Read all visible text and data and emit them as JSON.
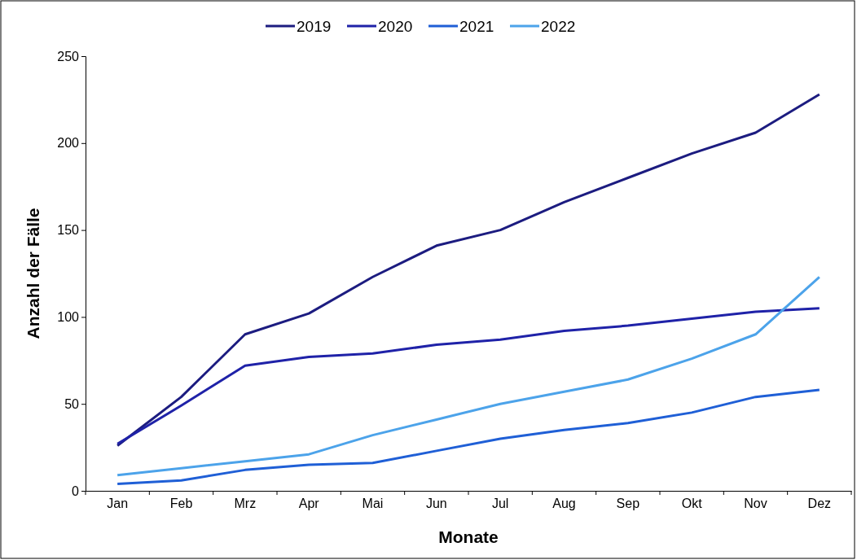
{
  "chart_data": {
    "type": "line",
    "xlabel": "Monate",
    "ylabel": "Anzahl der Fälle",
    "categories": [
      "Jan",
      "Feb",
      "Mrz",
      "Apr",
      "Mai",
      "Jun",
      "Jul",
      "Aug",
      "Sep",
      "Okt",
      "Nov",
      "Dez"
    ],
    "series": [
      {
        "name": "2019",
        "color": "#1c1c80",
        "values": [
          26,
          54,
          90,
          102,
          123,
          141,
          150,
          166,
          180,
          194,
          206,
          228
        ]
      },
      {
        "name": "2020",
        "color": "#1f22a8",
        "values": [
          27,
          49,
          72,
          77,
          79,
          84,
          87,
          92,
          95,
          99,
          103,
          105
        ]
      },
      {
        "name": "2021",
        "color": "#1f5fd6",
        "values": [
          4,
          6,
          12,
          15,
          16,
          23,
          30,
          35,
          39,
          45,
          54,
          58
        ]
      },
      {
        "name": "2022",
        "color": "#4ca3ea",
        "values": [
          9,
          13,
          17,
          21,
          32,
          41,
          50,
          57,
          64,
          76,
          90,
          123
        ]
      }
    ],
    "ylim": [
      0,
      250
    ],
    "yticks": [
      0,
      50,
      100,
      150,
      200,
      250
    ],
    "grid": false,
    "legend": "top",
    "marker": "none",
    "line_style": "solid"
  }
}
